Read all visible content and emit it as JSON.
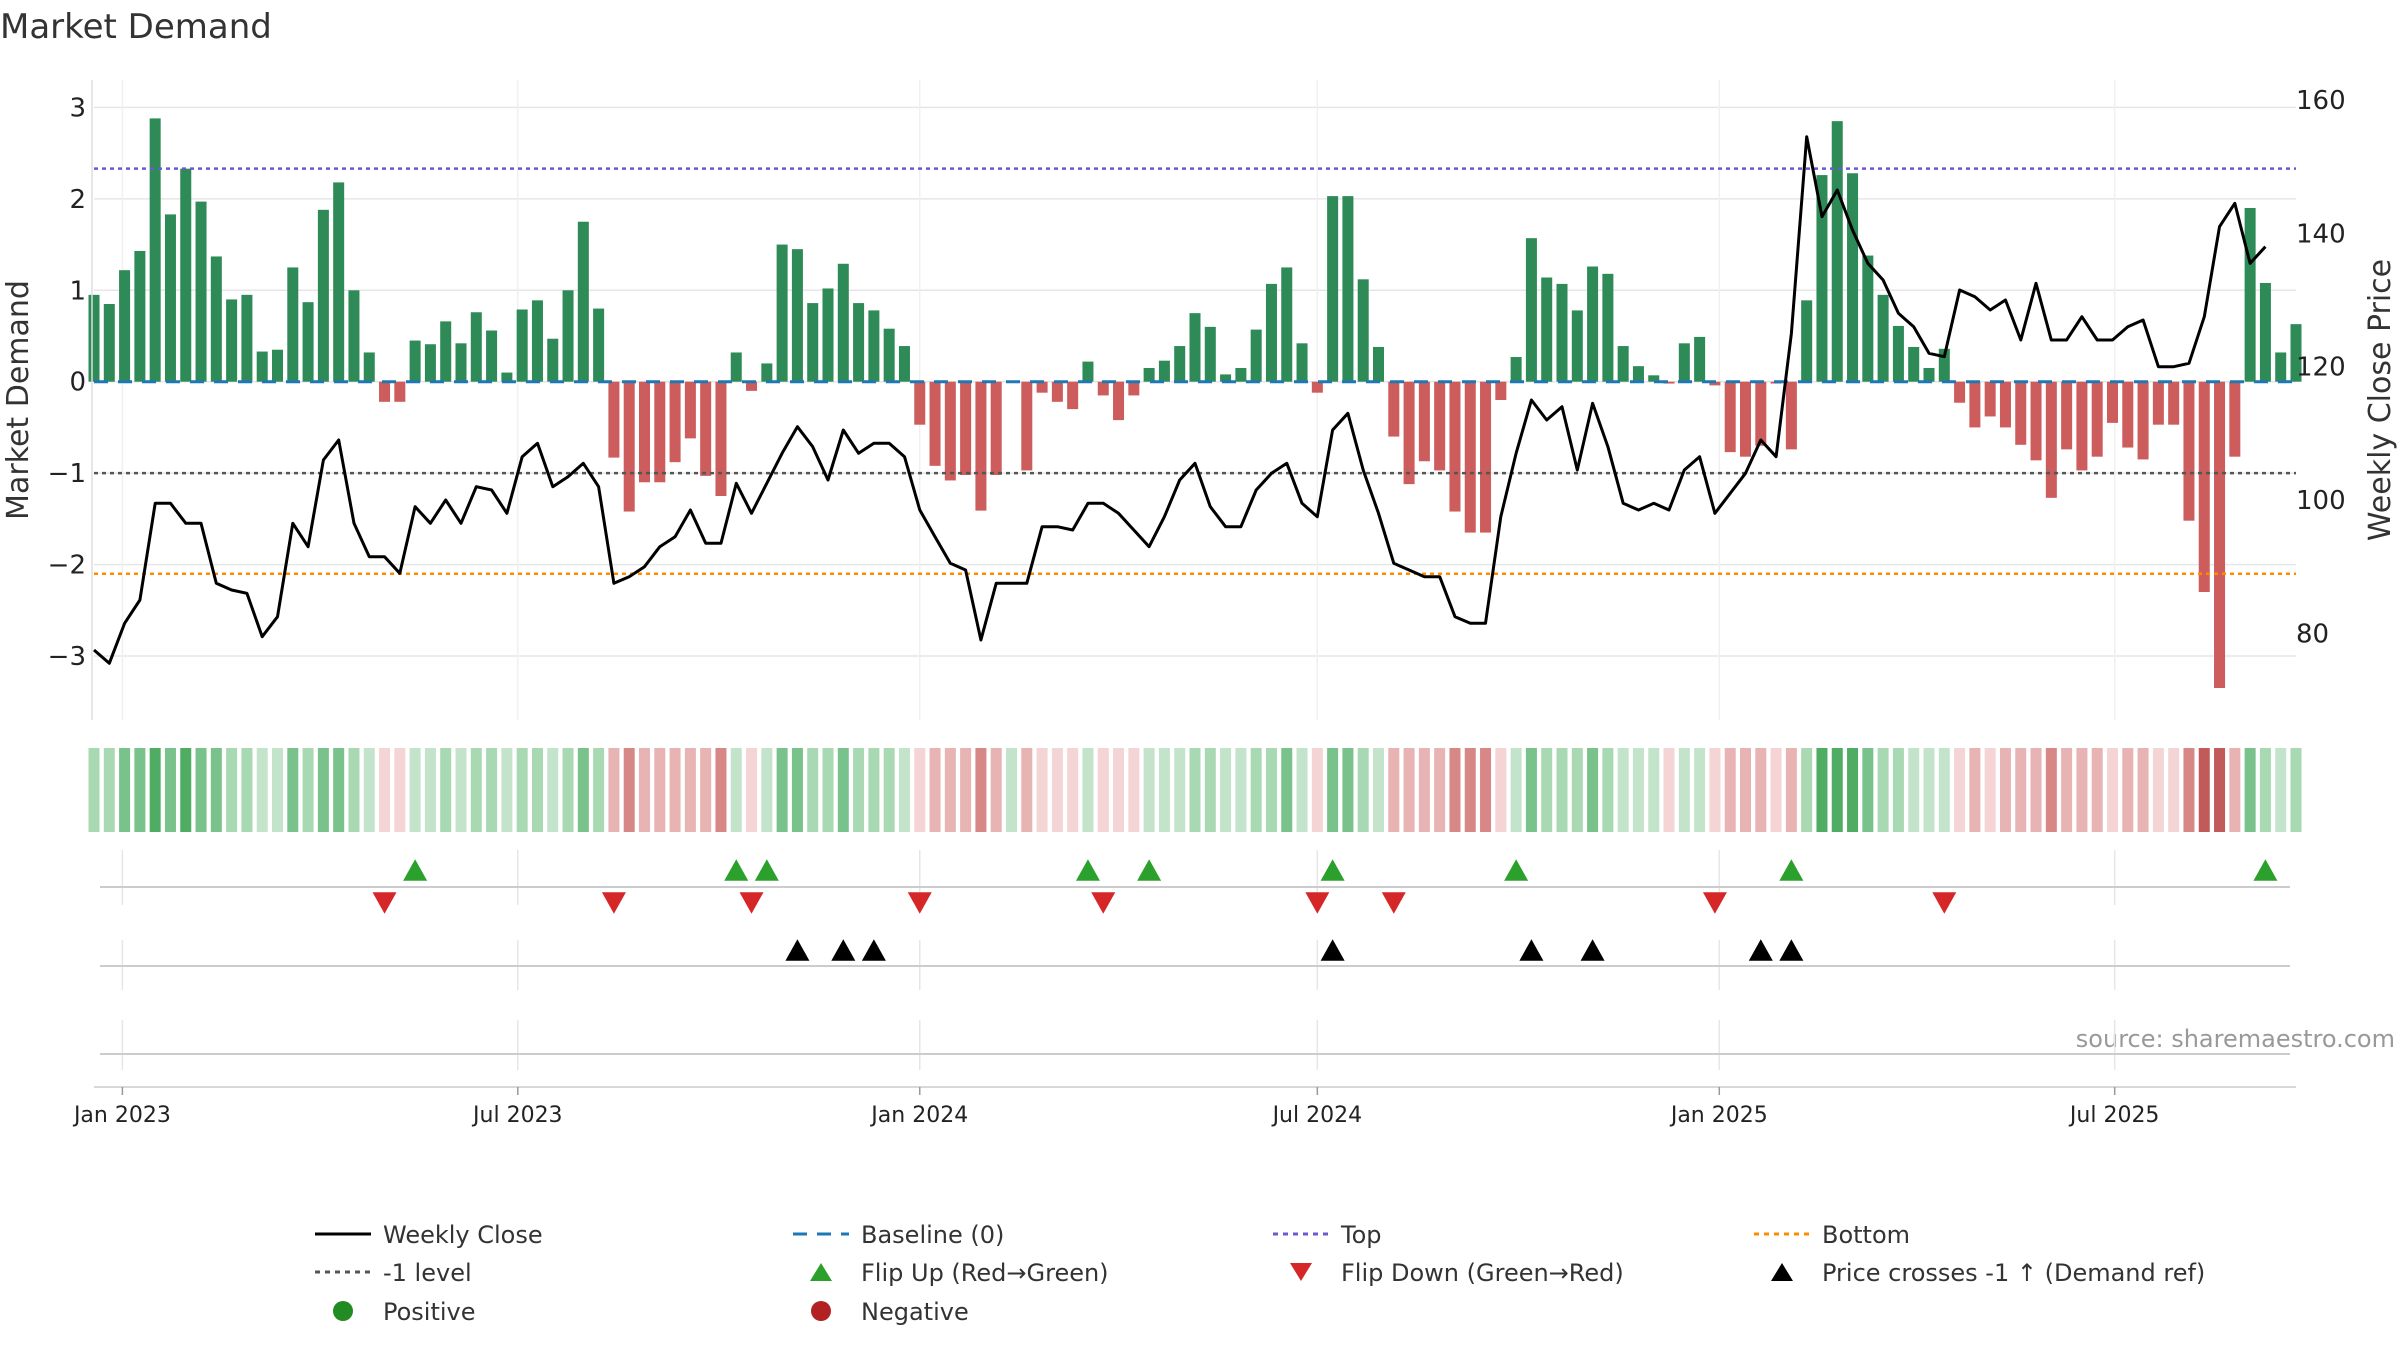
{
  "chart_data": {
    "type": "bar",
    "title": "Market Demand",
    "ylabel": "Market Demand",
    "y2label": "Weekly Close Price",
    "ylim": [
      -3.7,
      3.3
    ],
    "y2lim": [
      70,
      160
    ],
    "yticks": [
      3,
      2,
      1,
      0,
      -1,
      -2,
      -3
    ],
    "y2ticks": [
      160,
      140,
      120,
      100,
      80
    ],
    "x_range": [
      "2022-12-19",
      "2025-09-22"
    ],
    "xticks": [
      {
        "date": "2023-01-01",
        "label": "Jan 2023"
      },
      {
        "date": "2023-07-01",
        "label": "Jul 2023"
      },
      {
        "date": "2024-01-01",
        "label": "Jan 2024"
      },
      {
        "date": "2024-07-01",
        "label": "Jul 2024"
      },
      {
        "date": "2025-01-01",
        "label": "Jan 2025"
      },
      {
        "date": "2025-07-01",
        "label": "Jul 2025"
      }
    ],
    "start_date": "2022-12-19",
    "week_days": 7,
    "demand": [
      0.95,
      0.85,
      1.22,
      1.43,
      2.88,
      1.83,
      2.33,
      1.97,
      1.37,
      0.9,
      0.95,
      0.33,
      0.35,
      1.25,
      0.87,
      1.88,
      2.18,
      1.0,
      0.32,
      -0.22,
      -0.22,
      0.45,
      0.41,
      0.66,
      0.42,
      0.76,
      0.56,
      0.1,
      0.79,
      0.89,
      0.47,
      1.0,
      1.75,
      0.8,
      -0.83,
      -1.42,
      -1.1,
      -1.1,
      -0.88,
      -0.62,
      -1.03,
      -1.25,
      0.32,
      -0.1,
      0.2,
      1.5,
      1.45,
      0.86,
      1.02,
      1.29,
      0.86,
      0.78,
      0.58,
      0.39,
      -0.47,
      -0.92,
      -1.08,
      -1.02,
      -1.41,
      -1.02,
      0,
      -0.97,
      -0.12,
      -0.22,
      -0.3,
      0.22,
      -0.15,
      -0.42,
      -0.15,
      0.15,
      0.23,
      0.39,
      0.75,
      0.6,
      0.08,
      0.15,
      0.57,
      1.07,
      1.25,
      0.42,
      -0.12,
      2.03,
      2.03,
      1.12,
      0.38,
      -0.6,
      -1.12,
      -0.87,
      -0.97,
      -1.42,
      -1.65,
      -1.65,
      -0.2,
      0.27,
      1.57,
      1.14,
      1.07,
      0.78,
      1.26,
      1.18,
      0.39,
      0.17,
      0.07,
      -0.02,
      0.42,
      0.49,
      -0.04,
      -0.77,
      -0.82,
      -0.7,
      -0.02,
      -0.74,
      0.89,
      2.26,
      2.85,
      2.28,
      1.38,
      0.95,
      0.61,
      0.38,
      0.15,
      0.36,
      -0.23,
      -0.5,
      -0.38,
      -0.5,
      -0.69,
      -0.86,
      -1.27,
      -0.74,
      -0.97,
      -0.82,
      -0.45,
      -0.72,
      -0.85,
      -0.47,
      -0.47,
      -1.52,
      -2.3,
      -3.35,
      -0.82,
      1.9,
      1.08,
      0.32,
      0.63
    ],
    "close": [
      77.5,
      75.5,
      81.5,
      85,
      99.5,
      99.5,
      96.5,
      96.5,
      87.5,
      86.5,
      86,
      79.5,
      82.5,
      96.5,
      93,
      106,
      109,
      96.5,
      91.5,
      91.5,
      89,
      99,
      96.5,
      100,
      96.5,
      102,
      101.5,
      98,
      106.5,
      108.5,
      102,
      103.5,
      105.5,
      102,
      87.5,
      88.5,
      90,
      93,
      94.5,
      98.5,
      93.5,
      93.5,
      102.5,
      98,
      102.5,
      107,
      111,
      108,
      103,
      110.5,
      107,
      108.5,
      108.5,
      106.5,
      98.5,
      94.5,
      90.5,
      89.5,
      79,
      87.5,
      87.5,
      87.5,
      96,
      96,
      95.5,
      99.5,
      99.5,
      98,
      95.5,
      93,
      97.5,
      103,
      105.5,
      99,
      96,
      96,
      101.5,
      104,
      105.5,
      99.5,
      97.5,
      110.5,
      113,
      104.5,
      98,
      90.5,
      89.5,
      88.5,
      88.5,
      82.5,
      81.5,
      81.5,
      97.5,
      107,
      115,
      112,
      114,
      104.5,
      114.5,
      108,
      99.5,
      98.5,
      99.5,
      98.5,
      104.5,
      106.5,
      98,
      101,
      104,
      109,
      106.5,
      125,
      154.5,
      142.5,
      146.5,
      140.5,
      135.5,
      133,
      128,
      126,
      122,
      121.5,
      131.5,
      130.5,
      128.5,
      130,
      124,
      132.5,
      124,
      124,
      127.5,
      124,
      124,
      126,
      127,
      120,
      120,
      120.5,
      127.5,
      141,
      144.5,
      135.5,
      138
    ],
    "strip_colors": [
      "#c3e4cb",
      "#a8d9b3",
      "#79c28b",
      "#4fad63"
    ],
    "strip_neg_colors": [
      "#f4d4d4",
      "#e8b3b3",
      "#d88787",
      "#c25a5a"
    ],
    "bar_pos_color": "#2e8b57",
    "bar_neg_color": "#cd5c5c",
    "close_color": "#000000",
    "baseline_color": "#1f77b4",
    "top_level": 2.33,
    "top_color": "#6a5acd",
    "neg1_level": -1,
    "neg1_color": "#555555",
    "bottom_level": -2.1,
    "bottom_color": "#ff8c00",
    "flip_up_indices": [
      21,
      42,
      44,
      65,
      69,
      81,
      93,
      111,
      142
    ],
    "flip_down_indices": [
      19,
      34,
      43,
      54,
      66,
      80,
      85,
      106,
      121
    ],
    "cross_indices": [
      46,
      49,
      51,
      81,
      94,
      98,
      109,
      111
    ],
    "flip_up_color": "#2ca02c",
    "flip_down_color": "#d62728",
    "cross_color": "#000000",
    "source": "source: sharemaestro.com"
  },
  "legend": [
    {
      "label": "Weekly Close",
      "symbol": "line-solid",
      "color": "#000000"
    },
    {
      "label": "Baseline (0)",
      "symbol": "line-dash",
      "color": "#1f77b4"
    },
    {
      "label": "Top",
      "symbol": "line-dot",
      "color": "#6a5acd"
    },
    {
      "label": "Bottom",
      "symbol": "line-dot",
      "color": "#ff8c00"
    },
    {
      "label": "-1 level",
      "symbol": "line-dot",
      "color": "#555555"
    },
    {
      "label": "Flip Up (Red→Green)",
      "symbol": "triangle-up",
      "color": "#2ca02c"
    },
    {
      "label": "Flip Down (Green→Red)",
      "symbol": "triangle-down",
      "color": "#d62728"
    },
    {
      "label": "Price crosses -1 ↑ (Demand ref)",
      "symbol": "triangle-up",
      "color": "#000000"
    },
    {
      "label": "Positive",
      "symbol": "circle",
      "color": "#228b22"
    },
    {
      "label": "Negative",
      "symbol": "circle",
      "color": "#b22222"
    }
  ]
}
